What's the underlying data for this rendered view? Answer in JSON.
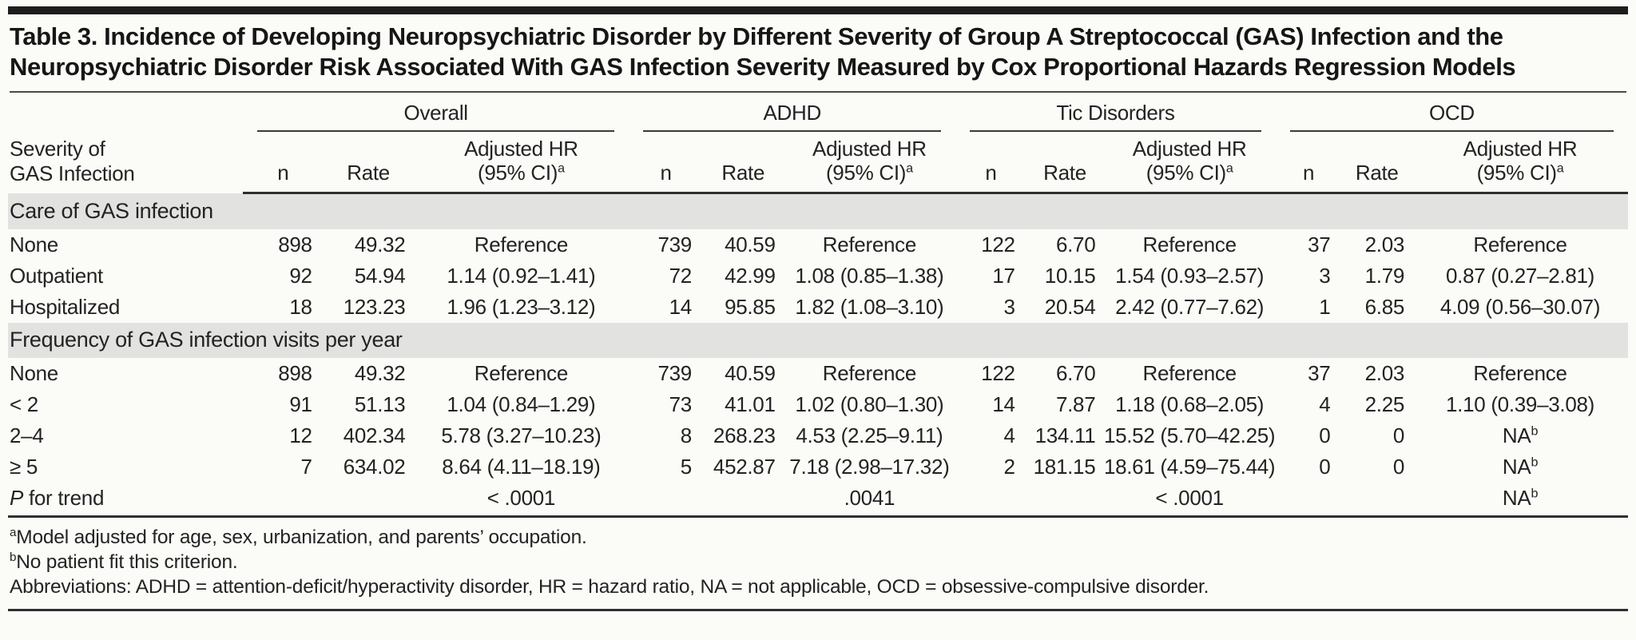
{
  "title": "Table 3. Incidence of Developing Neuropsychiatric Disorder by Different Severity of Group A Streptococcal (GAS) Infection and the Neuropsychiatric Disorder Risk Associated With GAS Infection Severity Measured by Cox Proportional Hazards Regression Models",
  "colors": {
    "background": "#fbfbf8",
    "section_band": "#e2e2e0",
    "rule": "#2f2f2f",
    "topbar": "#1d1d1d",
    "text": "#232323"
  },
  "header": {
    "stub": [
      "Severity of",
      "GAS Infection"
    ],
    "groups": [
      "Overall",
      "ADHD",
      "Tic Disorders",
      "OCD"
    ],
    "sub": {
      "n": "n",
      "rate": "Rate",
      "hr1": "Adjusted HR",
      "hr2": "(95% CI)",
      "hr_sup": "a"
    }
  },
  "table": {
    "sections": [
      {
        "header": "Care of GAS infection",
        "rows": [
          {
            "label": "None",
            "cells": [
              "898",
              "49.32",
              "Reference",
              "739",
              "40.59",
              "Reference",
              "122",
              "6.70",
              "Reference",
              "37",
              "2.03",
              "Reference"
            ]
          },
          {
            "label": "Outpatient",
            "cells": [
              "92",
              "54.94",
              "1.14 (0.92–1.41)",
              "72",
              "42.99",
              "1.08 (0.85–1.38)",
              "17",
              "10.15",
              "1.54 (0.93–2.57)",
              "3",
              "1.79",
              "0.87 (0.27–2.81)"
            ]
          },
          {
            "label": "Hospitalized",
            "cells": [
              "18",
              "123.23",
              "1.96 (1.23–3.12)",
              "14",
              "95.85",
              "1.82 (1.08–3.10)",
              "3",
              "20.54",
              "2.42 (0.77–7.62)",
              "1",
              "6.85",
              "4.09 (0.56–30.07)"
            ]
          }
        ]
      },
      {
        "header": "Frequency of GAS infection visits per year",
        "rows": [
          {
            "label": "None",
            "cells": [
              "898",
              "49.32",
              "Reference",
              "739",
              "40.59",
              "Reference",
              "122",
              "6.70",
              "Reference",
              "37",
              "2.03",
              "Reference"
            ]
          },
          {
            "label": "< 2",
            "cells": [
              "91",
              "51.13",
              "1.04 (0.84–1.29)",
              "73",
              "41.01",
              "1.02 (0.80–1.30)",
              "14",
              "7.87",
              "1.18 (0.68–2.05)",
              "4",
              "2.25",
              "1.10 (0.39–3.08)"
            ]
          },
          {
            "label": "2–4",
            "cells": [
              "12",
              "402.34",
              "5.78 (3.27–10.23)",
              "8",
              "268.23",
              "4.53 (2.25–9.11)",
              "4",
              "134.11",
              "15.52 (5.70–42.25)",
              "0",
              "0",
              "NA^b"
            ]
          },
          {
            "label": "≥ 5",
            "cells": [
              "7",
              "634.02",
              "8.64 (4.11–18.19)",
              "5",
              "452.87",
              "7.18 (2.98–17.32)",
              "2",
              "181.15",
              "18.61 (4.59–75.44)",
              "0",
              "0",
              "NA^b"
            ]
          },
          {
            "label": "P for trend",
            "italic_p": true,
            "cells": [
              "",
              "",
              "< .0001",
              "",
              "",
              ".0041",
              "",
              "",
              "< .0001",
              "",
              "",
              "NA^b"
            ]
          }
        ]
      }
    ]
  },
  "footnotes": [
    {
      "sup": "a",
      "text": "Model adjusted for age, sex, urbanization, and parents’ occupation."
    },
    {
      "sup": "b",
      "text": "No patient fit this criterion."
    },
    {
      "sup": "",
      "text": "Abbreviations: ADHD = attention-deficit/hyperactivity disorder, HR = hazard ratio, NA = not applicable, OCD = obsessive-compulsive disorder."
    }
  ]
}
